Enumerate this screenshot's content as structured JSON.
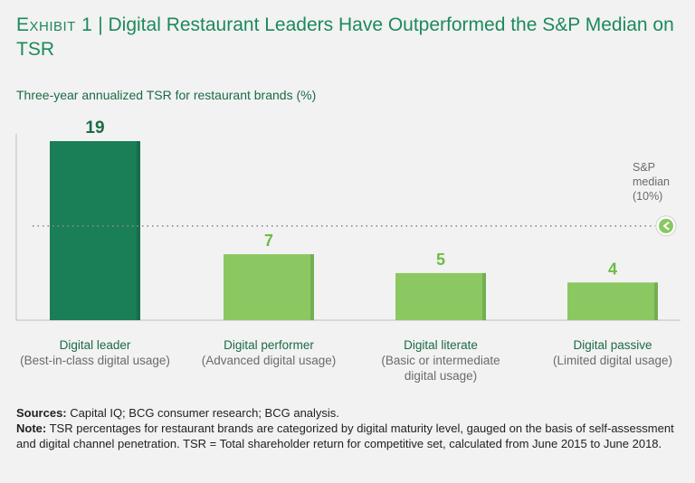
{
  "header": {
    "exhibit": "Exhibit 1",
    "separator": " | ",
    "title": "Digital Restaurant Leaders Have Outperformed the S&P Median on TSR"
  },
  "subtitle": "Three-year annualized TSR for restaurant brands (%)",
  "median": {
    "line1": "S&P",
    "line2": "median",
    "line3": "(10%)",
    "icon": "chevron-left-icon"
  },
  "colors": {
    "leader": "#1a7f57",
    "other": "#8bc862",
    "leader_label": "#1b6b45",
    "other_label": "#6cbd45",
    "shadow": "#5e9a45"
  },
  "chart_data": {
    "type": "bar",
    "categories": [
      "Digital leader",
      "Digital performer",
      "Digital literate",
      "Digital passive"
    ],
    "category_descriptions": [
      "(Best-in-class digital usage)",
      "(Advanced digital usage)",
      "(Basic or intermediate digital usage)",
      "(Limited digital usage)"
    ],
    "values": [
      19,
      7,
      5,
      4
    ],
    "value_labels": [
      "19",
      "7",
      "5",
      "4"
    ],
    "reference_line": {
      "label": "S&P median (10%)",
      "value": 10
    },
    "title": "Three-year annualized TSR for restaurant brands (%)",
    "xlabel": "",
    "ylabel": "",
    "ylim": [
      0,
      22
    ],
    "grid": false
  },
  "footer": {
    "sources_label": "Sources:",
    "sources_text": " Capital IQ; BCG consumer research; BCG analysis.",
    "note_label": "Note:",
    "note_text": " TSR percentages for restaurant brands are categorized by digital maturity level, gauged on the basis of self-assessment and digital channel penetration. TSR = Total shareholder return for competitive set, calculated from June 2015 to June 2018."
  }
}
